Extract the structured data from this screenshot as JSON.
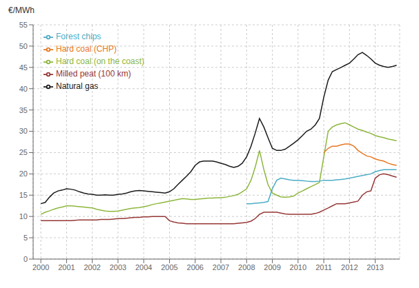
{
  "chart_data": {
    "type": "line",
    "ylabel": "€/MWh",
    "xlim": [
      1999.7,
      2013.95
    ],
    "xticks": [
      2000,
      2001,
      2002,
      2003,
      2004,
      2005,
      2006,
      2007,
      2008,
      2009,
      2010,
      2011,
      2012,
      2013
    ],
    "ylim": [
      0,
      55
    ],
    "yticks": [
      0,
      5,
      10,
      15,
      20,
      25,
      30,
      35,
      40,
      45,
      50,
      55
    ],
    "grid": true,
    "legend": "upper left",
    "series": [
      {
        "name": "Natural gas",
        "color": "#1a1a1a",
        "x": [
          2000.0,
          2000.17,
          2000.33,
          2000.5,
          2000.67,
          2000.83,
          2001.0,
          2001.17,
          2001.33,
          2001.5,
          2001.67,
          2001.83,
          2002.0,
          2002.17,
          2002.33,
          2002.5,
          2002.67,
          2002.83,
          2003.0,
          2003.17,
          2003.33,
          2003.5,
          2003.67,
          2003.83,
          2004.0,
          2004.17,
          2004.33,
          2004.5,
          2004.67,
          2004.83,
          2005.0,
          2005.17,
          2005.33,
          2005.5,
          2005.67,
          2005.83,
          2006.0,
          2006.17,
          2006.33,
          2006.5,
          2006.67,
          2006.83,
          2007.0,
          2007.17,
          2007.33,
          2007.5,
          2007.67,
          2007.83,
          2008.0,
          2008.17,
          2008.33,
          2008.5,
          2008.67,
          2008.83,
          2009.0,
          2009.17,
          2009.33,
          2009.5,
          2009.67,
          2009.83,
          2010.0,
          2010.17,
          2010.33,
          2010.5,
          2010.67,
          2010.83,
          2011.0,
          2011.17,
          2011.33,
          2011.5,
          2011.67,
          2011.83,
          2012.0,
          2012.17,
          2012.33,
          2012.5,
          2012.67,
          2012.83,
          2013.0,
          2013.17,
          2013.33,
          2013.5,
          2013.67,
          2013.83
        ],
        "values": [
          13.0,
          13.3,
          14.5,
          15.5,
          16.0,
          16.2,
          16.5,
          16.4,
          16.2,
          15.8,
          15.5,
          15.3,
          15.2,
          15.0,
          15.0,
          15.1,
          15.0,
          15.0,
          15.2,
          15.3,
          15.5,
          15.8,
          16.0,
          16.1,
          16.0,
          15.9,
          15.8,
          15.7,
          15.6,
          15.5,
          15.8,
          16.5,
          17.5,
          18.5,
          19.5,
          20.5,
          22.0,
          22.8,
          23.0,
          23.0,
          23.0,
          22.8,
          22.5,
          22.2,
          21.8,
          21.5,
          21.8,
          22.5,
          24.0,
          26.5,
          29.5,
          33.0,
          31.0,
          28.5,
          26.0,
          25.5,
          25.5,
          25.8,
          26.5,
          27.2,
          28.0,
          29.0,
          30.0,
          30.5,
          31.5,
          33.0,
          38.0,
          42.0,
          44.0,
          44.5,
          45.0,
          45.5,
          46.0,
          47.0,
          48.0,
          48.5,
          47.8,
          47.0,
          46.0,
          45.5,
          45.2,
          45.0,
          45.2,
          45.5
        ]
      },
      {
        "name": "Hard coal (on the coast)",
        "color": "#8db63c",
        "x": [
          2000.0,
          2000.17,
          2000.33,
          2000.5,
          2000.67,
          2000.83,
          2001.0,
          2001.17,
          2001.33,
          2001.5,
          2001.67,
          2001.83,
          2002.0,
          2002.17,
          2002.33,
          2002.5,
          2002.67,
          2002.83,
          2003.0,
          2003.17,
          2003.33,
          2003.5,
          2003.67,
          2003.83,
          2004.0,
          2004.17,
          2004.33,
          2004.5,
          2004.67,
          2004.83,
          2005.0,
          2005.17,
          2005.33,
          2005.5,
          2005.67,
          2005.83,
          2006.0,
          2006.17,
          2006.33,
          2006.5,
          2006.67,
          2006.83,
          2007.0,
          2007.17,
          2007.33,
          2007.5,
          2007.67,
          2007.83,
          2008.0,
          2008.17,
          2008.33,
          2008.5,
          2008.67,
          2008.83,
          2009.0,
          2009.17,
          2009.33,
          2009.5,
          2009.67,
          2009.83,
          2010.0,
          2010.17,
          2010.33,
          2010.5,
          2010.67,
          2010.83,
          2011.0,
          2011.17,
          2011.33,
          2011.5,
          2011.67,
          2011.83,
          2012.0,
          2012.17,
          2012.33,
          2012.5,
          2012.67,
          2012.83,
          2013.0,
          2013.17,
          2013.33,
          2013.5,
          2013.67,
          2013.83
        ],
        "values": [
          10.5,
          11.0,
          11.3,
          11.7,
          12.0,
          12.2,
          12.5,
          12.5,
          12.4,
          12.3,
          12.2,
          12.1,
          12.0,
          11.7,
          11.5,
          11.3,
          11.2,
          11.2,
          11.3,
          11.5,
          11.7,
          11.9,
          12.0,
          12.1,
          12.3,
          12.5,
          12.8,
          13.0,
          13.2,
          13.4,
          13.6,
          13.8,
          14.0,
          14.2,
          14.1,
          14.0,
          14.0,
          14.1,
          14.2,
          14.3,
          14.3,
          14.4,
          14.4,
          14.5,
          14.7,
          14.9,
          15.2,
          15.8,
          16.5,
          18.5,
          21.5,
          25.5,
          21.0,
          17.5,
          15.5,
          15.0,
          14.6,
          14.5,
          14.6,
          14.8,
          15.5,
          16.0,
          16.5,
          17.0,
          17.5,
          18.0,
          24.0,
          30.0,
          31.0,
          31.5,
          31.8,
          32.0,
          31.5,
          31.0,
          30.5,
          30.2,
          29.8,
          29.5,
          29.0,
          28.7,
          28.5,
          28.2,
          28.0,
          27.8
        ]
      },
      {
        "name": "Hard coal (CHP)",
        "color": "#e87722",
        "x": [
          2011.0,
          2011.17,
          2011.33,
          2011.5,
          2011.67,
          2011.83,
          2012.0,
          2012.17,
          2012.33,
          2012.5,
          2012.67,
          2012.83,
          2013.0,
          2013.17,
          2013.33,
          2013.5,
          2013.67,
          2013.83
        ],
        "values": [
          25.0,
          26.0,
          26.5,
          26.5,
          26.8,
          27.0,
          27.0,
          26.5,
          25.5,
          24.8,
          24.2,
          24.0,
          23.5,
          23.2,
          23.0,
          22.5,
          22.2,
          22.0
        ]
      },
      {
        "name": "Forest chips",
        "color": "#4bacc6",
        "x": [
          2008.0,
          2008.17,
          2008.33,
          2008.5,
          2008.67,
          2008.83,
          2009.0,
          2009.17,
          2009.33,
          2009.5,
          2009.67,
          2009.83,
          2010.0,
          2010.17,
          2010.33,
          2010.5,
          2010.67,
          2010.83,
          2011.0,
          2011.17,
          2011.33,
          2011.5,
          2011.67,
          2011.83,
          2012.0,
          2012.17,
          2012.33,
          2012.5,
          2012.67,
          2012.83,
          2013.0,
          2013.17,
          2013.33,
          2013.5,
          2013.67,
          2013.83
        ],
        "values": [
          13.0,
          13.0,
          13.1,
          13.2,
          13.3,
          13.5,
          16.5,
          18.5,
          19.0,
          18.8,
          18.6,
          18.5,
          18.5,
          18.4,
          18.3,
          18.2,
          18.2,
          18.3,
          18.5,
          18.5,
          18.5,
          18.6,
          18.7,
          18.8,
          19.0,
          19.2,
          19.4,
          19.6,
          19.8,
          20.0,
          20.5,
          20.8,
          21.0,
          21.0,
          21.0,
          21.0
        ]
      },
      {
        "name": "Milled peat (100 km)",
        "color": "#953735",
        "x": [
          2000.0,
          2000.17,
          2000.33,
          2000.5,
          2000.67,
          2000.83,
          2001.0,
          2001.17,
          2001.33,
          2001.5,
          2001.67,
          2001.83,
          2002.0,
          2002.17,
          2002.33,
          2002.5,
          2002.67,
          2002.83,
          2003.0,
          2003.17,
          2003.33,
          2003.5,
          2003.67,
          2003.83,
          2004.0,
          2004.17,
          2004.33,
          2004.5,
          2004.67,
          2004.83,
          2005.0,
          2005.17,
          2005.33,
          2005.5,
          2005.67,
          2005.83,
          2006.0,
          2006.17,
          2006.33,
          2006.5,
          2006.67,
          2006.83,
          2007.0,
          2007.17,
          2007.33,
          2007.5,
          2007.67,
          2007.83,
          2008.0,
          2008.17,
          2008.33,
          2008.5,
          2008.67,
          2008.83,
          2009.0,
          2009.17,
          2009.33,
          2009.5,
          2009.67,
          2009.83,
          2010.0,
          2010.17,
          2010.33,
          2010.5,
          2010.67,
          2010.83,
          2011.0,
          2011.17,
          2011.33,
          2011.5,
          2011.67,
          2011.83,
          2012.0,
          2012.17,
          2012.33,
          2012.5,
          2012.67,
          2012.83,
          2013.0,
          2013.17,
          2013.33,
          2013.5,
          2013.67,
          2013.83
        ],
        "values": [
          9.0,
          9.0,
          9.0,
          9.0,
          9.0,
          9.0,
          9.0,
          9.0,
          9.1,
          9.2,
          9.2,
          9.2,
          9.2,
          9.2,
          9.3,
          9.3,
          9.3,
          9.4,
          9.5,
          9.5,
          9.6,
          9.7,
          9.8,
          9.8,
          9.9,
          9.9,
          10.0,
          10.0,
          10.0,
          10.0,
          9.0,
          8.7,
          8.5,
          8.4,
          8.3,
          8.3,
          8.3,
          8.3,
          8.3,
          8.3,
          8.3,
          8.3,
          8.3,
          8.3,
          8.3,
          8.3,
          8.4,
          8.5,
          8.6,
          8.9,
          9.5,
          10.5,
          11.0,
          11.0,
          11.0,
          11.0,
          10.8,
          10.6,
          10.5,
          10.5,
          10.5,
          10.5,
          10.5,
          10.5,
          10.7,
          11.0,
          11.5,
          12.0,
          12.5,
          13.0,
          13.0,
          13.0,
          13.2,
          13.4,
          13.6,
          15.0,
          15.8,
          16.0,
          19.0,
          19.8,
          20.0,
          19.8,
          19.5,
          19.2
        ]
      }
    ]
  }
}
